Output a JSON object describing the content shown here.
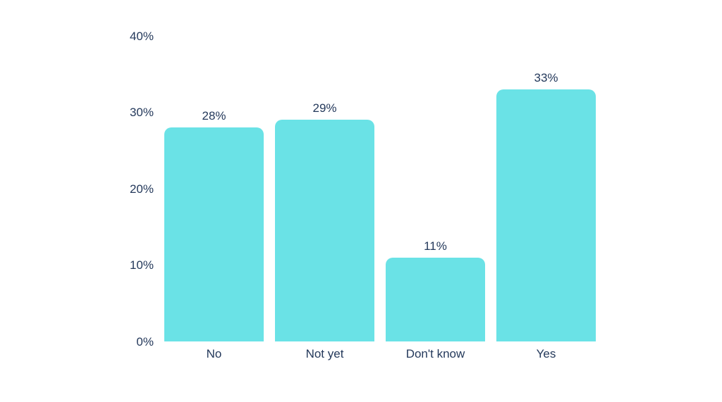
{
  "chart_data": {
    "type": "bar",
    "categories": [
      "No",
      "Not yet",
      "Don't know",
      "Yes"
    ],
    "values": [
      28,
      29,
      11,
      33
    ],
    "value_labels": [
      "28%",
      "29%",
      "11%",
      "33%"
    ],
    "title": "",
    "xlabel": "",
    "ylabel": "",
    "ylim": [
      0,
      40
    ],
    "y_tick_values": [
      0,
      10,
      20,
      30,
      40
    ],
    "y_tick_labels": [
      "0%",
      "10%",
      "20%",
      "30%",
      "40%"
    ],
    "grid": false,
    "legend": false,
    "bar_color": "#6AE2E6",
    "text_color": "#24395B",
    "background_color": "#FFFFFF"
  }
}
